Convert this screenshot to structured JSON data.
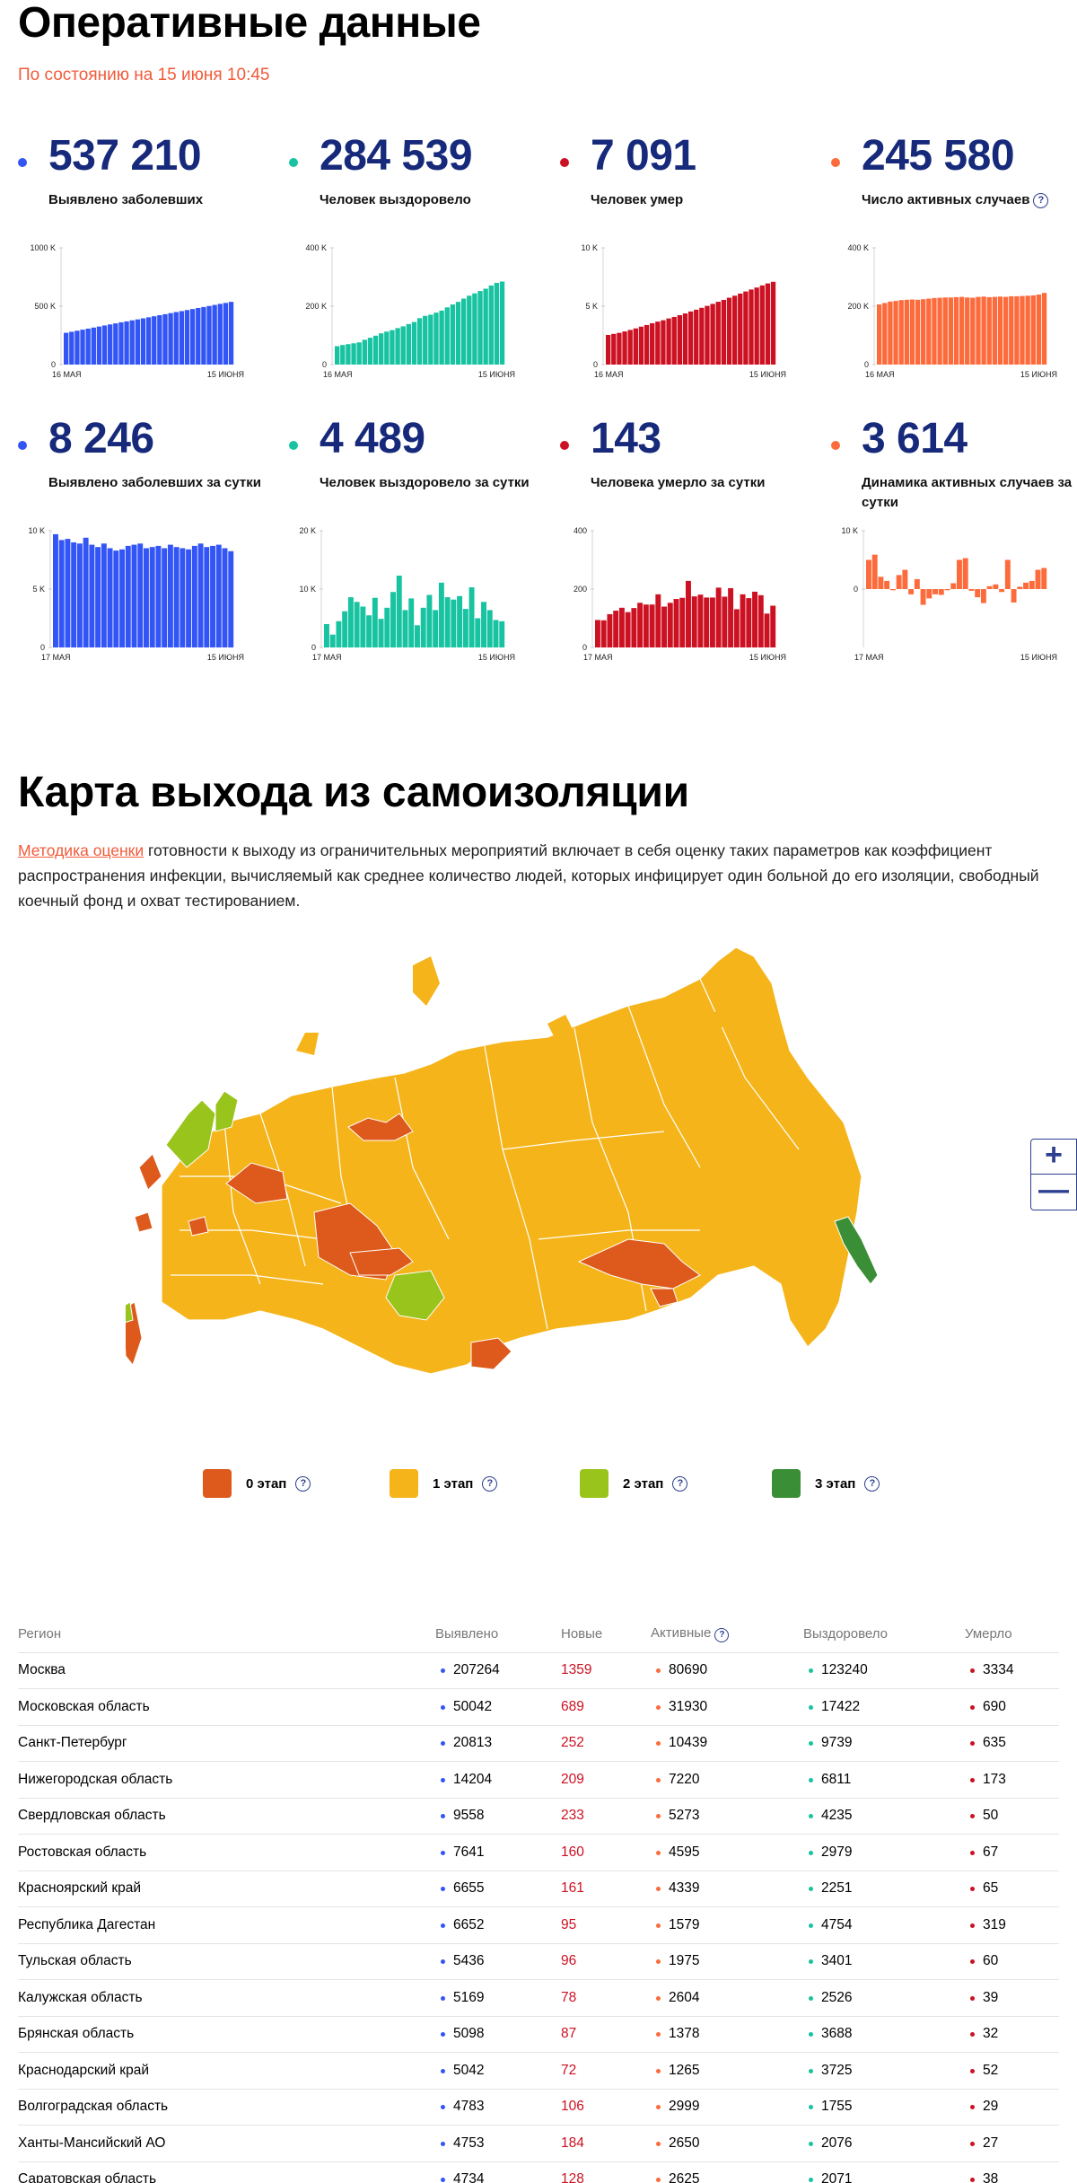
{
  "header": {
    "title": "Оперативные данные",
    "subtitle": "По состоянию на 15 июня 10:45"
  },
  "colors": {
    "blue": "#3355f5",
    "teal": "#17c3a0",
    "red": "#cc1122",
    "orange": "#fc6b3c",
    "title_blue": "#16297a",
    "stage0": "#dd5a1c",
    "stage1": "#f5b41a",
    "stage2": "#99c41c",
    "stage3": "#3a8f36"
  },
  "stats": [
    {
      "value": "537 210",
      "label": "Выявлено заболевших",
      "color": "#3355f5"
    },
    {
      "value": "284 539",
      "label": "Человек выздоровело",
      "color": "#17c3a0"
    },
    {
      "value": "7 091",
      "label": "Человек умер",
      "color": "#cc1122"
    },
    {
      "value": "245 580",
      "label": "Число активных случаев",
      "color": "#fc6b3c"
    },
    {
      "value": "8 246",
      "label": "Выявлено заболевших за сутки",
      "color": "#3355f5"
    },
    {
      "value": "4 489",
      "label": "Человек выздоровело за сутки",
      "color": "#17c3a0"
    },
    {
      "value": "143",
      "label": "Человека умерло за сутки",
      "color": "#cc1122"
    },
    {
      "value": "3 614",
      "label": "Динамика активных случаев за сутки",
      "color": "#fc6b3c"
    }
  ],
  "chart_data": [
    {
      "type": "bar",
      "series_label": "Выявлено заболевших",
      "yticks": [
        "0",
        "500 K",
        "1000 K"
      ],
      "ylim": [
        0,
        1000000
      ],
      "xticks": [
        "16 МАЯ",
        "15 ИЮНЯ"
      ],
      "values": [
        272000,
        281000,
        290000,
        299000,
        308000,
        317000,
        326000,
        335000,
        344000,
        353000,
        362000,
        370000,
        379000,
        387000,
        396000,
        405000,
        414000,
        423000,
        432000,
        441000,
        450000,
        458000,
        467000,
        476000,
        485000,
        493000,
        502000,
        511000,
        520000,
        528000,
        537210
      ]
    },
    {
      "type": "bar",
      "series_label": "Человек выздоровело",
      "yticks": [
        "0",
        "200 K",
        "400 K"
      ],
      "ylim": [
        0,
        400000
      ],
      "xticks": [
        "16 МАЯ",
        "15 ИЮНЯ"
      ],
      "values": [
        63000,
        67000,
        70000,
        73000,
        76000,
        85000,
        92000,
        99000,
        107000,
        113000,
        118000,
        125000,
        131000,
        139000,
        146000,
        159000,
        167000,
        171000,
        178000,
        185000,
        196000,
        206000,
        215000,
        226000,
        236000,
        244000,
        252000,
        260000,
        271000,
        280000,
        284539
      ]
    },
    {
      "type": "bar",
      "series_label": "Человек умер",
      "yticks": [
        "0",
        "5 K",
        "10 K"
      ],
      "ylim": [
        0,
        10000
      ],
      "xticks": [
        "16 МАЯ",
        "15 ИЮНЯ"
      ],
      "values": [
        2540,
        2630,
        2720,
        2840,
        2970,
        3100,
        3250,
        3390,
        3540,
        3680,
        3800,
        3950,
        4080,
        4230,
        4380,
        4550,
        4700,
        4860,
        5030,
        5200,
        5380,
        5540,
        5730,
        5900,
        6080,
        6260,
        6430,
        6600,
        6780,
        6950,
        7091
      ]
    },
    {
      "type": "bar",
      "series_label": "Число активных случаев",
      "yticks": [
        "0",
        "200 K",
        "400 K"
      ],
      "ylim": [
        0,
        400000
      ],
      "xticks": [
        "16 МАЯ",
        "15 ИЮНЯ"
      ],
      "values": [
        206000,
        211000,
        216000,
        218000,
        221000,
        222000,
        223000,
        222000,
        224000,
        226000,
        228000,
        229000,
        230000,
        230000,
        231000,
        232000,
        230000,
        229000,
        232000,
        233000,
        231000,
        232000,
        233000,
        232000,
        234000,
        234000,
        235000,
        236000,
        237000,
        240000,
        245580
      ]
    },
    {
      "type": "bar",
      "series_label": "Выявлено заболевших за сутки",
      "yticks": [
        "0",
        "5 K",
        "10 K"
      ],
      "ylim": [
        0,
        10000
      ],
      "xticks": [
        "17 МАЯ",
        "15 ИЮНЯ"
      ],
      "values": [
        9700,
        9200,
        9300,
        9000,
        8900,
        9400,
        8800,
        8600,
        8900,
        8500,
        8300,
        8400,
        8700,
        8800,
        8900,
        8500,
        8600,
        8700,
        8500,
        8800,
        8600,
        8500,
        8400,
        8700,
        8900,
        8600,
        8700,
        8800,
        8500,
        8246
      ]
    },
    {
      "type": "bar",
      "series_label": "Человек выздоровело за сутки",
      "yticks": [
        "0",
        "10 K",
        "20 K"
      ],
      "ylim": [
        0,
        20000
      ],
      "xticks": [
        "17 МАЯ",
        "15 ИЮНЯ"
      ],
      "values": [
        4000,
        2200,
        4500,
        6200,
        8600,
        7800,
        7000,
        5500,
        8500,
        4900,
        6800,
        9500,
        12300,
        6400,
        8400,
        3800,
        6800,
        9000,
        6400,
        11100,
        8600,
        8200,
        8800,
        6600,
        10300,
        5000,
        7800,
        6400,
        4700,
        4489
      ]
    },
    {
      "type": "bar",
      "series_label": "Человека умерло за сутки",
      "yticks": [
        "0",
        "200",
        "400"
      ],
      "ylim": [
        0,
        400
      ],
      "xticks": [
        "17 МАЯ",
        "15 ИЮНЯ"
      ],
      "values": [
        94,
        93,
        114,
        126,
        136,
        121,
        135,
        153,
        147,
        147,
        182,
        140,
        153,
        166,
        170,
        228,
        175,
        181,
        171,
        171,
        205,
        174,
        203,
        131,
        182,
        169,
        191,
        179,
        116,
        143
      ]
    },
    {
      "type": "bar",
      "series_label": "Динамика активных случаев за сутки",
      "yticks": [
        "10 K",
        "0"
      ],
      "ylim": [
        -10000,
        10000
      ],
      "xticks": [
        "17 МАЯ",
        "15 ИЮНЯ"
      ],
      "values": [
        5000,
        5900,
        2100,
        1400,
        -200,
        2400,
        3300,
        -900,
        1700,
        -2700,
        -1600,
        -900,
        -1000,
        -200,
        1000,
        5000,
        5300,
        -300,
        -1400,
        -2400,
        500,
        800,
        -500,
        5000,
        -2300,
        400,
        1100,
        1400,
        3300,
        3614
      ]
    }
  ],
  "map": {
    "title": "Карта выхода из самоизоляции",
    "desc_link": "Методика оценки",
    "desc_text": " готовности к выходу из ограничительных мероприятий включает в себя оценку таких параметров как коэффициент распространения инфекции, вычисляемый как среднее количество людей, которых инфицирует один больной до его изоляции, свободный коечный фонд и охват тестированием.",
    "zoom_in": "+",
    "zoom_out": "—",
    "legend": [
      {
        "label": "0 этап",
        "color": "#dd5a1c"
      },
      {
        "label": "1 этап",
        "color": "#f5b41a"
      },
      {
        "label": "2 этап",
        "color": "#99c41c"
      },
      {
        "label": "3 этап",
        "color": "#3a8f36"
      }
    ],
    "help_glyph": "?"
  },
  "table": {
    "headers": [
      "Регион",
      "Выявлено",
      "Новые",
      "Активные",
      "Выздоровело",
      "Умерло"
    ],
    "rows": [
      [
        "Москва",
        "207264",
        "1359",
        "80690",
        "123240",
        "3334"
      ],
      [
        "Московская область",
        "50042",
        "689",
        "31930",
        "17422",
        "690"
      ],
      [
        "Санкт-Петербург",
        "20813",
        "252",
        "10439",
        "9739",
        "635"
      ],
      [
        "Нижегородская область",
        "14204",
        "209",
        "7220",
        "6811",
        "173"
      ],
      [
        "Свердловская область",
        "9558",
        "233",
        "5273",
        "4235",
        "50"
      ],
      [
        "Ростовская область",
        "7641",
        "160",
        "4595",
        "2979",
        "67"
      ],
      [
        "Красноярский край",
        "6655",
        "161",
        "4339",
        "2251",
        "65"
      ],
      [
        "Республика Дагестан",
        "6652",
        "95",
        "1579",
        "4754",
        "319"
      ],
      [
        "Тульская область",
        "5436",
        "96",
        "1975",
        "3401",
        "60"
      ],
      [
        "Калужская область",
        "5169",
        "78",
        "2604",
        "2526",
        "39"
      ],
      [
        "Брянская область",
        "5098",
        "87",
        "1378",
        "3688",
        "32"
      ],
      [
        "Краснодарский край",
        "5042",
        "72",
        "1265",
        "3725",
        "52"
      ],
      [
        "Волгоградская область",
        "4783",
        "106",
        "2999",
        "1755",
        "29"
      ],
      [
        "Ханты-Мансийский АО",
        "4753",
        "184",
        "2650",
        "2076",
        "27"
      ],
      [
        "Саратовская область",
        "4734",
        "128",
        "2625",
        "2071",
        "38"
      ]
    ]
  }
}
